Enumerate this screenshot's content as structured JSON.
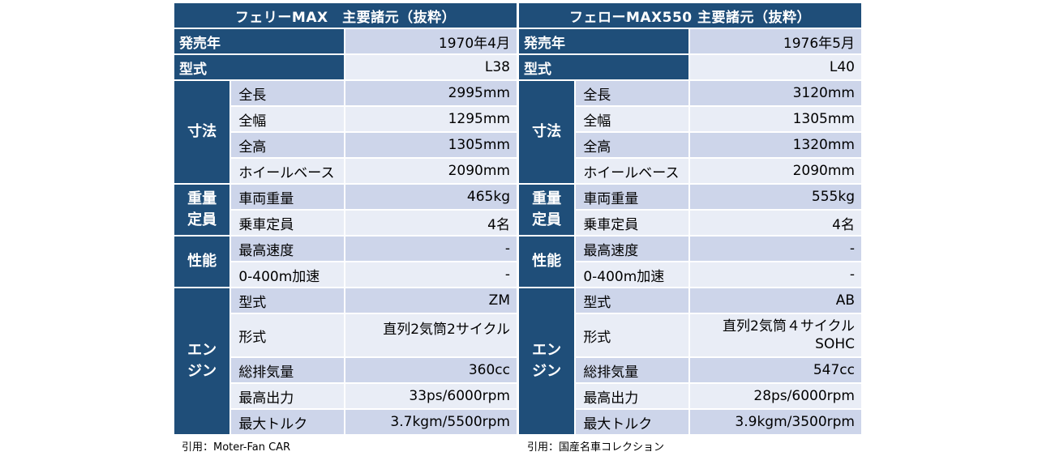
{
  "tables": [
    {
      "title": "フェリーMAX　主要諸元（抜粋）",
      "release_label": "発売年",
      "release_value": "1970年4月",
      "model_label": "型式",
      "model_value": "L38",
      "dim_group": "寸法",
      "dims": [
        {
          "label": "全長",
          "value": "2995mm"
        },
        {
          "label": "全幅",
          "value": "1295mm"
        },
        {
          "label": "全高",
          "value": "1305mm"
        },
        {
          "label": "ホイールベース",
          "value": "2090mm"
        }
      ],
      "weight_group": "重量\n定員",
      "weights": [
        {
          "label": "車両重量",
          "value": "465kg"
        },
        {
          "label": "乗車定員",
          "value": "4名"
        }
      ],
      "perf_group": "性能",
      "perf": [
        {
          "label": "最高速度",
          "value": "-"
        },
        {
          "label": "0-400m加速",
          "value": "-"
        }
      ],
      "engine_group": "エン\nジン",
      "engine": [
        {
          "label": "型式",
          "value": "ZM"
        },
        {
          "label": "形式",
          "value": "直列2気筒2サイクル"
        },
        {
          "label": "総排気量",
          "value": "360cc"
        },
        {
          "label": "最高出力",
          "value": "33ps/6000rpm"
        },
        {
          "label": "最大トルク",
          "value": "3.7kgm/5500rpm"
        }
      ],
      "source": "引用：Moter-Fan CAR"
    },
    {
      "title": "フェローMAX550 主要諸元（抜粋）",
      "release_label": "発売年",
      "release_value": "1976年5月",
      "model_label": "型式",
      "model_value": "L40",
      "dim_group": "寸法",
      "dims": [
        {
          "label": "全長",
          "value": "3120mm"
        },
        {
          "label": "全幅",
          "value": "1305mm"
        },
        {
          "label": "全高",
          "value": "1320mm"
        },
        {
          "label": "ホイールベース",
          "value": "2090mm"
        }
      ],
      "weight_group": "重量\n定員",
      "weights": [
        {
          "label": "車両重量",
          "value": "555kg"
        },
        {
          "label": "乗車定員",
          "value": "4名"
        }
      ],
      "perf_group": "性能",
      "perf": [
        {
          "label": "最高速度",
          "value": "-"
        },
        {
          "label": "0-400m加速",
          "value": "-"
        }
      ],
      "engine_group": "エン\nジン",
      "engine": [
        {
          "label": "型式",
          "value": "AB"
        },
        {
          "label": "形式",
          "value": "直列2気筒４サイクル\nSOHC"
        },
        {
          "label": "総排気量",
          "value": "547cc"
        },
        {
          "label": "最高出力",
          "value": "28ps/6000rpm"
        },
        {
          "label": "最大トルク",
          "value": "3.9kgm/3500rpm"
        }
      ],
      "source": "引用：国産名車コレクション"
    }
  ]
}
